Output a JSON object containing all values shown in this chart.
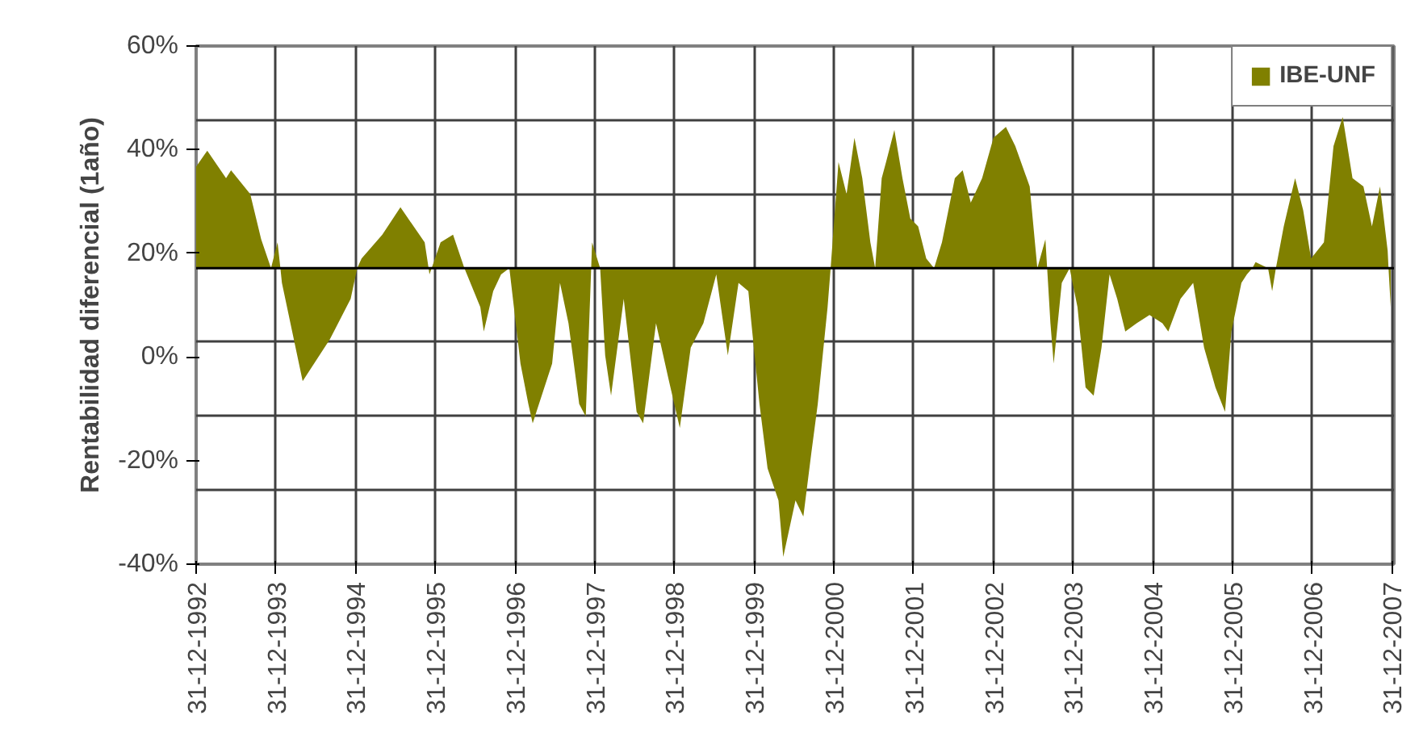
{
  "chart_data": {
    "type": "area",
    "ylabel": "Rentabilidad diferencial (1año)",
    "x": [
      "1992-12-31",
      "1993-02-20",
      "1993-05-17",
      "1993-06-09",
      "1993-09-05",
      "1993-10-25",
      "1993-12-09",
      "1994-01-08",
      "1994-01-21",
      "1994-01-28",
      "1994-05-03",
      "1994-09-05",
      "1994-12-09",
      "1995-01-08",
      "1995-01-28",
      "1995-05-03",
      "1995-07-25",
      "1995-11-13",
      "1995-12-01",
      "1995-12-05",
      "1995-12-15",
      "1996-01-25",
      "1996-03-22",
      "1996-05-13",
      "1996-07-25",
      "1996-08-10",
      "1996-09-22",
      "1996-10-28",
      "1996-12-05",
      "1997-01-25",
      "1997-03-02",
      "1997-03-22",
      "1997-06-19",
      "1997-07-25",
      "1997-09-02",
      "1997-10-21",
      "1997-11-20",
      "1997-12-15",
      "1997-12-19",
      "1998-01-25",
      "1998-02-17",
      "1998-03-16",
      "1998-05-13",
      "1998-07-11",
      "1998-08-10",
      "1998-10-08",
      "1998-12-05",
      "1999-01-25",
      "1999-03-16",
      "1999-05-13",
      "1999-07-11",
      "1999-09-02",
      "1999-10-21",
      "1999-12-05",
      "1999-12-19",
      "2000-01-25",
      "2000-03-02",
      "2000-04-21",
      "2000-05-13",
      "2000-07-08",
      "2000-08-13",
      "2000-09-19",
      "2000-10-18",
      "2000-12-02",
      "2000-12-16",
      "2001-01-21",
      "2001-02-27",
      "2001-04-04",
      "2001-05-10",
      "2001-06-16",
      "2001-07-08",
      "2001-08-07",
      "2001-08-27",
      "2001-10-04",
      "2001-11-10",
      "2001-12-16",
      "2002-01-21",
      "2002-02-27",
      "2002-04-04",
      "2002-05-10",
      "2002-07-08",
      "2002-08-13",
      "2002-09-19",
      "2002-11-10",
      "2003-01-01",
      "2003-02-27",
      "2003-04-11",
      "2003-06-16",
      "2003-07-21",
      "2003-08-27",
      "2003-09-04",
      "2003-09-19",
      "2003-10-04",
      "2003-11-10",
      "2003-12-16",
      "2004-01-21",
      "2004-02-27",
      "2004-04-04",
      "2004-05-10",
      "2004-06-16",
      "2004-07-21",
      "2004-08-27",
      "2004-10-18",
      "2004-12-16",
      "2005-02-13",
      "2005-03-12",
      "2005-05-07",
      "2005-07-04",
      "2005-08-23",
      "2005-10-14",
      "2005-11-27",
      "2005-12-26",
      "2006-02-10",
      "2006-03-07",
      "2006-04-01",
      "2006-04-16",
      "2006-06-12",
      "2006-07-01",
      "2006-07-18",
      "2006-08-23",
      "2006-10-14",
      "2006-11-20",
      "2006-12-26",
      "2007-02-23",
      "2007-04-08",
      "2007-05-20",
      "2007-07-04",
      "2007-08-23",
      "2007-10-01",
      "2007-11-07",
      "2007-12-12",
      "2007-12-16",
      "2007-12-26"
    ],
    "series": [
      {
        "name": "IBE-UNF",
        "color": "#808000",
        "values": [
          36.7,
          39.8,
          34.5,
          36.0,
          31.4,
          22.7,
          17.14,
          22.1,
          17.14,
          14.3,
          -4.7,
          3.4,
          11.2,
          17.14,
          19.0,
          23.6,
          28.9,
          22.1,
          17.14,
          15.9,
          17.14,
          22.1,
          23.6,
          17.14,
          9.6,
          4.9,
          12.7,
          15.9,
          17.14,
          -1.3,
          -9.1,
          -12.8,
          -1.3,
          14.3,
          6.5,
          -9.1,
          -11.5,
          17.14,
          22.1,
          17.14,
          0.3,
          -7.5,
          11.2,
          -10.6,
          -12.8,
          6.5,
          -4.4,
          -13.7,
          1.8,
          6.5,
          15.9,
          0.3,
          14.3,
          12.7,
          6.5,
          -9.1,
          -21.5,
          -27.7,
          -38.6,
          -27.7,
          -30.8,
          -18.4,
          -9.1,
          9.6,
          17.14,
          37.6,
          31.4,
          42.3,
          34.5,
          22.1,
          17.14,
          34.5,
          37.6,
          43.8,
          34.5,
          26.7,
          25.2,
          19.0,
          17.14,
          22.1,
          34.5,
          36.0,
          29.8,
          34.5,
          42.3,
          44.4,
          40.7,
          32.9,
          17.14,
          22.7,
          17.14,
          6.5,
          -1.3,
          14.3,
          17.14,
          9.6,
          -5.9,
          -7.5,
          1.8,
          15.9,
          11.2,
          4.9,
          6.5,
          8.1,
          6.5,
          4.9,
          11.2,
          14.3,
          1.8,
          -5.9,
          -10.6,
          4.9,
          14.3,
          15.9,
          17.14,
          18.3,
          17.14,
          12.7,
          17.14,
          25.2,
          34.5,
          28.3,
          19.0,
          22.1,
          40.7,
          46.3,
          34.5,
          32.9,
          25.2,
          32.9,
          20.5,
          17.14,
          9.6
        ]
      }
    ],
    "xlim": [
      "1992-12-31",
      "2008-01-10"
    ],
    "xticks": [
      {
        "value": "1992-12-31",
        "label": "31-12-1992"
      },
      {
        "value": "1993-12-31",
        "label": "31-12-1993"
      },
      {
        "value": "1994-12-31",
        "label": "31-12-1994"
      },
      {
        "value": "1995-12-31",
        "label": "31-12-1995"
      },
      {
        "value": "1996-12-31",
        "label": "31-12-1996"
      },
      {
        "value": "1997-12-31",
        "label": "31-12-1997"
      },
      {
        "value": "1998-12-31",
        "label": "31-12-1998"
      },
      {
        "value": "1999-12-31",
        "label": "31-12-1999"
      },
      {
        "value": "2000-12-31",
        "label": "31-12-2000"
      },
      {
        "value": "2001-12-31",
        "label": "31-12-2001"
      },
      {
        "value": "2002-12-31",
        "label": "31-12-2002"
      },
      {
        "value": "2003-12-31",
        "label": "31-12-2003"
      },
      {
        "value": "2004-12-31",
        "label": "31-12-2004"
      },
      {
        "value": "2005-12-31",
        "label": "31-12-2005"
      },
      {
        "value": "2006-12-31",
        "label": "31-12-2006"
      },
      {
        "value": "2007-12-31",
        "label": "31-12-2007"
      }
    ],
    "ylim": [
      -40,
      60
    ],
    "yticks": [
      {
        "value": 60,
        "label": "60%"
      },
      {
        "value": 40,
        "label": "40%"
      },
      {
        "value": 20,
        "label": "20%"
      },
      {
        "value": 0,
        "label": "0%"
      },
      {
        "value": -20,
        "label": "-20%"
      },
      {
        "value": -40,
        "label": "-40%"
      },
      {
        "value": 45.71,
        "label": null
      },
      {
        "value": 31.43,
        "label": null
      },
      {
        "value": 2.86,
        "label": null
      },
      {
        "value": -11.43,
        "label": null
      },
      {
        "value": -25.71,
        "label": null
      }
    ],
    "ref_lines": [
      {
        "axis": "y",
        "value": 17.14,
        "color": "#000000"
      }
    ],
    "grid": true,
    "legend": "top right"
  }
}
